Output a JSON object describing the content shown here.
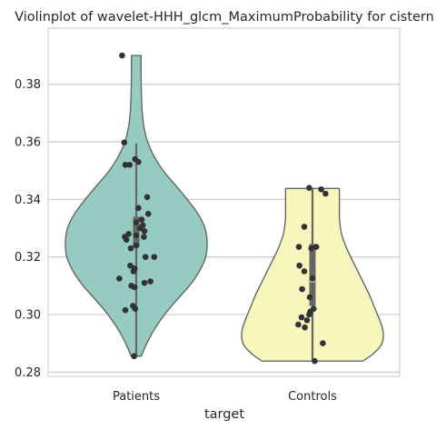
{
  "chart_data": {
    "type": "violin",
    "title": "Violinplot of wavelet-HHH_glcm_MaximumProbability for cistern",
    "xlabel": "target",
    "ylabel": "",
    "categories": [
      "Patients",
      "Controls"
    ],
    "ylim": [
      0.2785,
      0.3995
    ],
    "yticks": [
      0.28,
      0.3,
      0.32,
      0.34,
      0.36,
      0.38
    ],
    "ytick_labels": [
      "0.28",
      "0.30",
      "0.32",
      "0.34",
      "0.36",
      "0.38"
    ],
    "grid": true,
    "colors": {
      "Patients": "#96cbc1",
      "Controls": "#f7f7bd",
      "outline": "#666666",
      "points": "#333333",
      "grid": "#cccccc",
      "axes_edge": "#d0d0d0"
    },
    "series": [
      {
        "category": "Patients",
        "violin_range": [
          0.2855,
          0.39
        ],
        "box": {
          "q1": 0.3235,
          "median": 0.3272,
          "q3": 0.334,
          "whisker_low": 0.2855,
          "whisker_high": 0.3595
        },
        "density_halfwidths": [
          [
            0.2855,
            0.07
          ],
          [
            0.29,
            0.15
          ],
          [
            0.295,
            0.26
          ],
          [
            0.3,
            0.4
          ],
          [
            0.305,
            0.57
          ],
          [
            0.31,
            0.75
          ],
          [
            0.315,
            0.89
          ],
          [
            0.32,
            0.98
          ],
          [
            0.325,
            1.0
          ],
          [
            0.33,
            0.97
          ],
          [
            0.335,
            0.87
          ],
          [
            0.34,
            0.72
          ],
          [
            0.345,
            0.55
          ],
          [
            0.35,
            0.38
          ],
          [
            0.355,
            0.25
          ],
          [
            0.36,
            0.16
          ],
          [
            0.365,
            0.11
          ],
          [
            0.37,
            0.085
          ],
          [
            0.375,
            0.075
          ],
          [
            0.38,
            0.07
          ],
          [
            0.385,
            0.068
          ],
          [
            0.39,
            0.068
          ]
        ],
        "points": [
          {
            "y": 0.39,
            "j": -0.26
          },
          {
            "y": 0.3598,
            "j": -0.22
          },
          {
            "y": 0.354,
            "j": -0.02
          },
          {
            "y": 0.353,
            "j": 0.04
          },
          {
            "y": 0.352,
            "j": -0.2
          },
          {
            "y": 0.352,
            "j": -0.12
          },
          {
            "y": 0.3408,
            "j": 0.2
          },
          {
            "y": 0.337,
            "j": 0.04
          },
          {
            "y": 0.335,
            "j": 0.22
          },
          {
            "y": 0.333,
            "j": 0.1
          },
          {
            "y": 0.332,
            "j": 0.0
          },
          {
            "y": 0.331,
            "j": 0.12
          },
          {
            "y": 0.33,
            "j": 0.07
          },
          {
            "y": 0.329,
            "j": 0.15
          },
          {
            "y": 0.328,
            "j": -0.14
          },
          {
            "y": 0.3275,
            "j": 0.0
          },
          {
            "y": 0.327,
            "j": -0.21
          },
          {
            "y": 0.327,
            "j": 0.14
          },
          {
            "y": 0.326,
            "j": -0.18
          },
          {
            "y": 0.324,
            "j": 0.0
          },
          {
            "y": 0.323,
            "j": -0.1
          },
          {
            "y": 0.32,
            "j": 0.17
          },
          {
            "y": 0.32,
            "j": 0.33
          },
          {
            "y": 0.317,
            "j": -0.11
          },
          {
            "y": 0.316,
            "j": -0.03
          },
          {
            "y": 0.315,
            "j": -0.05
          },
          {
            "y": 0.3125,
            "j": -0.31
          },
          {
            "y": 0.3115,
            "j": 0.26
          },
          {
            "y": 0.311,
            "j": 0.15
          },
          {
            "y": 0.31,
            "j": -0.09
          },
          {
            "y": 0.3095,
            "j": -0.03
          },
          {
            "y": 0.303,
            "j": -0.06
          },
          {
            "y": 0.302,
            "j": -0.02
          },
          {
            "y": 0.3015,
            "j": -0.2
          },
          {
            "y": 0.2855,
            "j": -0.04
          }
        ]
      },
      {
        "category": "Controls",
        "violin_range": [
          0.2838,
          0.3438
        ],
        "box": {
          "q1": 0.303,
          "median": 0.3115,
          "q3": 0.3245,
          "whisker_low": 0.2838,
          "whisker_high": 0.3438
        },
        "density_halfwidths": [
          [
            0.2838,
            0.71
          ],
          [
            0.286,
            0.84
          ],
          [
            0.289,
            0.96
          ],
          [
            0.292,
            1.0
          ],
          [
            0.295,
            0.99
          ],
          [
            0.298,
            0.95
          ],
          [
            0.301,
            0.9
          ],
          [
            0.304,
            0.85
          ],
          [
            0.307,
            0.8
          ],
          [
            0.31,
            0.74
          ],
          [
            0.313,
            0.68
          ],
          [
            0.316,
            0.62
          ],
          [
            0.319,
            0.56
          ],
          [
            0.322,
            0.5
          ],
          [
            0.325,
            0.45
          ],
          [
            0.328,
            0.41
          ],
          [
            0.331,
            0.39
          ],
          [
            0.334,
            0.38
          ],
          [
            0.337,
            0.38
          ],
          [
            0.34,
            0.38
          ],
          [
            0.3438,
            0.38
          ]
        ],
        "points": [
          {
            "y": 0.344,
            "j": -0.06
          },
          {
            "y": 0.3435,
            "j": 0.16
          },
          {
            "y": 0.342,
            "j": 0.24
          },
          {
            "y": 0.3305,
            "j": -0.15
          },
          {
            "y": 0.3235,
            "j": -0.25
          },
          {
            "y": 0.3235,
            "j": 0.07
          },
          {
            "y": 0.323,
            "j": -0.02
          },
          {
            "y": 0.317,
            "j": -0.24
          },
          {
            "y": 0.315,
            "j": -0.15
          },
          {
            "y": 0.3125,
            "j": 0.0
          },
          {
            "y": 0.3088,
            "j": -0.19
          },
          {
            "y": 0.306,
            "j": -0.05
          },
          {
            "y": 0.302,
            "j": 0.02
          },
          {
            "y": 0.301,
            "j": -0.04
          },
          {
            "y": 0.3,
            "j": -0.06
          },
          {
            "y": 0.299,
            "j": -0.2
          },
          {
            "y": 0.298,
            "j": -0.1
          },
          {
            "y": 0.2965,
            "j": -0.26
          },
          {
            "y": 0.2955,
            "j": -0.14
          },
          {
            "y": 0.29,
            "j": 0.19
          },
          {
            "y": 0.2838,
            "j": 0.04
          }
        ]
      }
    ]
  }
}
